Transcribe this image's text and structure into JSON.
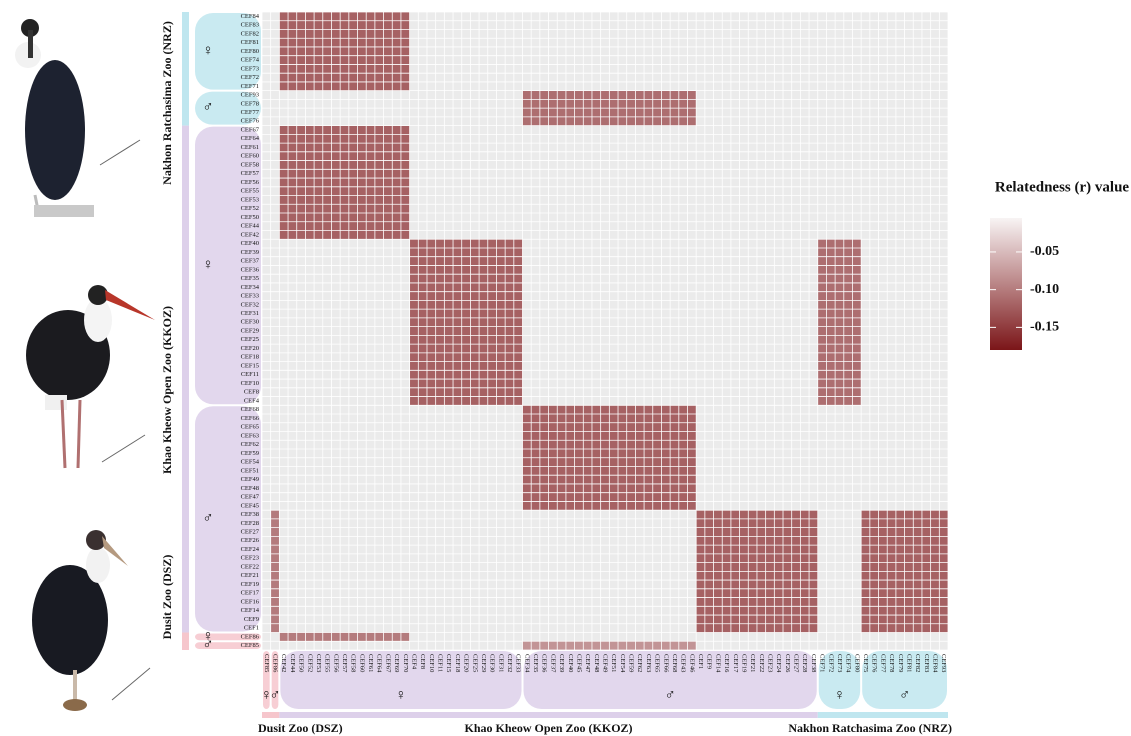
{
  "chart_data": {
    "type": "heatmap",
    "legend_title": "Relatedness (r) value",
    "clim": [
      -0.18,
      -0.005
    ],
    "color_low": "#7b1518",
    "color_high": "#f8f4f4",
    "cticks": [
      -0.05,
      {
        "value": -0.1,
        "label": "-0.10"
      },
      -0.15
    ],
    "row_labels": [
      "CEF84",
      "CEF83",
      "CEF82",
      "CEF81",
      "CEF80",
      "CEF74",
      "CEF73",
      "CEF72",
      "CEF71",
      "CEF93",
      "CEF78",
      "CEF77",
      "CEF76",
      "CEF67",
      "CEF64",
      "CEF61",
      "CEF60",
      "CEF58",
      "CEF57",
      "CEF56",
      "CEF55",
      "CEF53",
      "CEF52",
      "CEF50",
      "CEF44",
      "CEF42",
      "CEF40",
      "CEF39",
      "CEF37",
      "CEF36",
      "CEF35",
      "CEF34",
      "CEF33",
      "CEF32",
      "CEF31",
      "CEF30",
      "CEF29",
      "CEF25",
      "CEF20",
      "CEF18",
      "CEF15",
      "CEF11",
      "CEF10",
      "CEF8",
      "CEF4",
      "CEF68",
      "CEF66",
      "CEF65",
      "CEF63",
      "CEF62",
      "CEF59",
      "CEF54",
      "CEF51",
      "CEF49",
      "CEF48",
      "CEF47",
      "CEF45",
      "CEF38",
      "CEF28",
      "CEF27",
      "CEF26",
      "CEF24",
      "CEF23",
      "CEF22",
      "CEF21",
      "CEF19",
      "CEF17",
      "CEF16",
      "CEF14",
      "CEF9",
      "CEF1",
      "CEF86",
      "CEF85"
    ],
    "col_labels": [
      "CEF85",
      "CEF86",
      "CEF42",
      "CEF44",
      "CEF50",
      "CEF52",
      "CEF53",
      "CEF55",
      "CEF56",
      "CEF57",
      "CEF58",
      "CEF60",
      "CEF61",
      "CEF64",
      "CEF67",
      "CEF69",
      "CEF70",
      "CEF4",
      "CEF8",
      "CEF10",
      "CEF11",
      "CEF15",
      "CEF18",
      "CEF20",
      "CEF25",
      "CEF29",
      "CEF30",
      "CEF31",
      "CEF32",
      "CEF33",
      "CEF34",
      "CEF35",
      "CEF36",
      "CEF37",
      "CEF39",
      "CEF40",
      "CEF45",
      "CEF47",
      "CEF48",
      "CEF49",
      "CEF51",
      "CEF54",
      "CEF59",
      "CEF62",
      "CEF63",
      "CEF65",
      "CEF66",
      "CEF68",
      "CEF43",
      "CEF46",
      "CEF1",
      "CEF9",
      "CEF14",
      "CEF16",
      "CEF17",
      "CEF19",
      "CEF21",
      "CEF22",
      "CEF23",
      "CEF24",
      "CEF26",
      "CEF27",
      "CEF28",
      "CEF38",
      "CEF71",
      "CEF72",
      "CEF73",
      "CEF74",
      "CEF80",
      "CEF75",
      "CEF76",
      "CEF77",
      "CEF78",
      "CEF79",
      "CEF81",
      "CEF82",
      "CEF83",
      "CEF84",
      "CEF93"
    ],
    "row_zoos": [
      {
        "label": "Nakhon Ratchasima Zoo (NRZ)",
        "start": 0,
        "end": 12,
        "color": "#bfe6ef"
      },
      {
        "label": "Khao Kheow Open Zoo (KKOZ)",
        "start": 13,
        "end": 70,
        "color": "#ddd0ea"
      },
      {
        "label": "Dusit Zoo (DSZ)",
        "start": 71,
        "end": 72,
        "color": "#f6c6cc"
      }
    ],
    "col_zoos": [
      {
        "label": "Dusit Zoo (DSZ)",
        "start": 0,
        "end": 1,
        "color": "#f6c6cc"
      },
      {
        "label": "Khao Kheow Open Zoo (KKOZ)",
        "start": 2,
        "end": 63,
        "color": "#ddd0ea"
      },
      {
        "label": "Nakhon Ratchasima Zoo (NRZ)",
        "start": 64,
        "end": 78,
        "color": "#bfe6ef"
      }
    ],
    "row_sexes": [
      {
        "label": "♀",
        "start": 0,
        "end": 8,
        "zoo": 0
      },
      {
        "label": "♂",
        "start": 9,
        "end": 12,
        "zoo": 0
      },
      {
        "label": "♀",
        "start": 13,
        "end": 44,
        "zoo": 1
      },
      {
        "label": "♂",
        "start": 45,
        "end": 70,
        "zoo": 1
      },
      {
        "label": "♀",
        "start": 71,
        "end": 71,
        "zoo": 2
      },
      {
        "label": "♂",
        "start": 72,
        "end": 72,
        "zoo": 2
      }
    ],
    "col_sexes": [
      {
        "label": "♀",
        "start": 0,
        "end": 0,
        "zoo": 0
      },
      {
        "label": "♂",
        "start": 1,
        "end": 1,
        "zoo": 0
      },
      {
        "label": "♀",
        "start": 2,
        "end": 29,
        "zoo": 1
      },
      {
        "label": "♂",
        "start": 30,
        "end": 63,
        "zoo": 1
      },
      {
        "label": "♀",
        "start": 64,
        "end": 68,
        "zoo": 2
      },
      {
        "label": "♂",
        "start": 69,
        "end": 78,
        "zoo": 2
      }
    ],
    "blocks": [
      {
        "rows": [
          0,
          8
        ],
        "cols": [
          2,
          16
        ],
        "value": -0.12
      },
      {
        "rows": [
          13,
          25
        ],
        "cols": [
          2,
          16
        ],
        "value": -0.12
      },
      {
        "rows": [
          9,
          12
        ],
        "cols": [
          30,
          49
        ],
        "value": -0.11
      },
      {
        "rows": [
          26,
          44
        ],
        "cols": [
          17,
          29
        ],
        "value": -0.12
      },
      {
        "rows": [
          26,
          44
        ],
        "cols": [
          64,
          68
        ],
        "value": -0.11
      },
      {
        "rows": [
          45,
          56
        ],
        "cols": [
          30,
          49
        ],
        "value": -0.12
      },
      {
        "rows": [
          57,
          70
        ],
        "cols": [
          50,
          63
        ],
        "value": -0.12
      },
      {
        "rows": [
          57,
          70
        ],
        "cols": [
          69,
          78
        ],
        "value": -0.12
      },
      {
        "rows": [
          57,
          70
        ],
        "cols": [
          1,
          1
        ],
        "value": -0.1
      },
      {
        "rows": [
          71,
          71
        ],
        "cols": [
          2,
          16
        ],
        "value": -0.1
      },
      {
        "rows": [
          72,
          72
        ],
        "cols": [
          30,
          49
        ],
        "value": -0.08
      }
    ]
  }
}
